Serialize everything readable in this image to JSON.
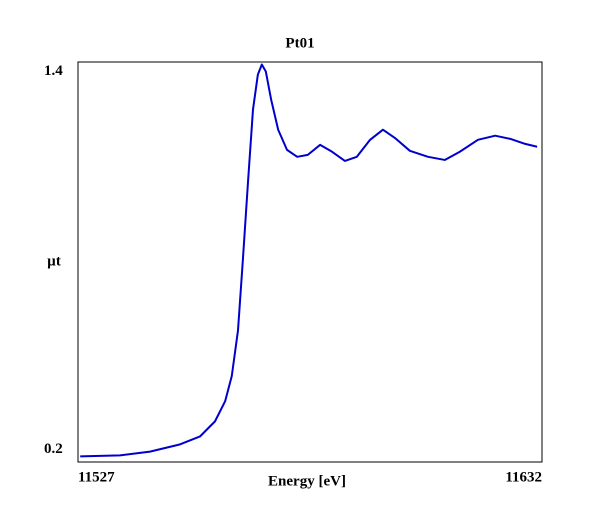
{
  "chart_data": {
    "type": "line",
    "title": "Pt01",
    "x_label": "Energy [eV]",
    "y_label": "µt",
    "x": [
      11527.5,
      11536.5,
      11543.3,
      11550.1,
      11554.6,
      11558,
      11560.3,
      11561.8,
      11563.2,
      11564.3,
      11565.5,
      11566.6,
      11567.7,
      11568.6,
      11569.5,
      11570.7,
      11572.3,
      11574.3,
      11576.6,
      11579,
      11581.8,
      11584.5,
      11587.4,
      11590.1,
      11593.1,
      11596,
      11598.7,
      11602.1,
      11606.2,
      11610,
      11613.4,
      11617.5,
      11621.4,
      11624.8,
      11628.2,
      11630.9
    ],
    "series": [
      {
        "name": "Pt01",
        "color": "#0000cc",
        "values": [
          0.178,
          0.181,
          0.193,
          0.216,
          0.241,
          0.289,
          0.353,
          0.433,
          0.577,
          0.8,
          1.055,
          1.279,
          1.39,
          1.422,
          1.4,
          1.311,
          1.215,
          1.151,
          1.129,
          1.135,
          1.167,
          1.145,
          1.116,
          1.129,
          1.183,
          1.215,
          1.189,
          1.148,
          1.129,
          1.119,
          1.145,
          1.183,
          1.196,
          1.186,
          1.17,
          1.161
        ]
      }
    ],
    "xlim": [
      11527,
      11632
    ],
    "xticks": [
      11527,
      11632
    ],
    "ylim": [
      0.16,
      1.43
    ],
    "yticks": [
      0.2,
      1.4
    ]
  }
}
